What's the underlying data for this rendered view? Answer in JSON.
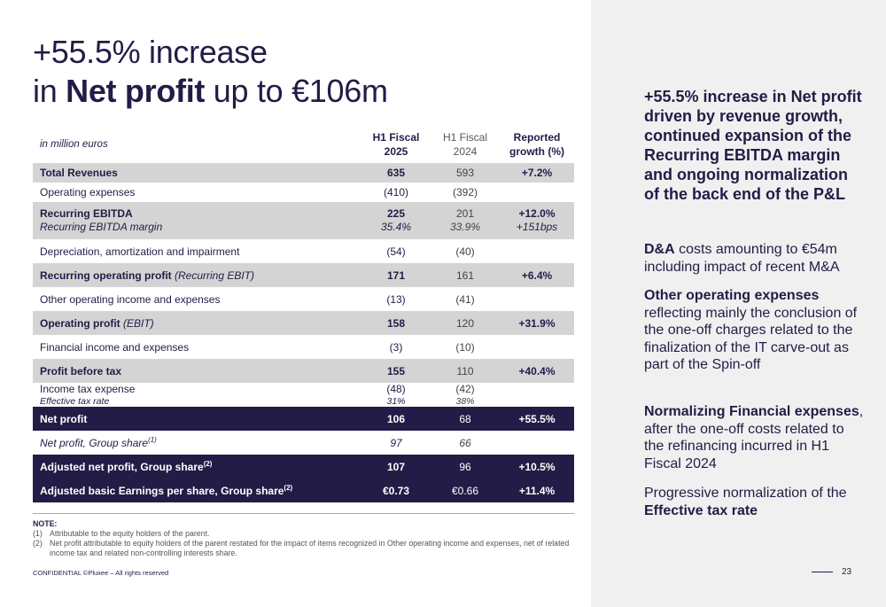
{
  "title": {
    "line1": "+55.5% increase",
    "line2_pre": "in ",
    "line2_bold": "Net profit",
    "line2_post": " up to €106m"
  },
  "table": {
    "unit": "in million euros",
    "headers": {
      "h1_line1": "H1 Fiscal",
      "h1_line2": "2025",
      "h2_line1": "H1 Fiscal",
      "h2_line2": "2024",
      "h3_line1": "Reported",
      "h3_line2": "growth (%)"
    },
    "rows": {
      "total_revenues": {
        "label": "Total Revenues",
        "v2025": "635",
        "v2024": "593",
        "growth": "+7.2%"
      },
      "opex": {
        "label": "Operating expenses",
        "v2025": "(410)",
        "v2024": "(392)",
        "growth": ""
      },
      "ebitda": {
        "label": "Recurring EBITDA",
        "v2025": "225",
        "v2024": "201",
        "growth": "+12.0%",
        "sub_label": "Recurring EBITDA margin",
        "sub_2025": "35.4%",
        "sub_2024": "33.9%",
        "sub_growth": "+151bps"
      },
      "dna": {
        "label": "Depreciation, amortization and impairment",
        "v2025": "(54)",
        "v2024": "(40)",
        "growth": ""
      },
      "rop": {
        "label": "Recurring operating profit",
        "label_it": "(Recurring EBIT)",
        "v2025": "171",
        "v2024": "161",
        "growth": "+6.4%"
      },
      "ooie": {
        "label": "Other operating income and expenses",
        "v2025": "(13)",
        "v2024": "(41)",
        "growth": ""
      },
      "op": {
        "label": "Operating profit",
        "label_it": "(EBIT)",
        "v2025": "158",
        "v2024": "120",
        "growth": "+31.9%"
      },
      "fin": {
        "label": "Financial income and expenses",
        "v2025": "(3)",
        "v2024": "(10)",
        "growth": ""
      },
      "pbt": {
        "label": "Profit before tax",
        "v2025": "155",
        "v2024": "110",
        "growth": "+40.4%"
      },
      "tax": {
        "label": "Income tax expense",
        "v2025": "(48)",
        "v2024": "(42)",
        "growth": "",
        "sub_label": "Effective tax rate",
        "sub_2025": "31%",
        "sub_2024": "38%"
      },
      "np": {
        "label": "Net profit",
        "v2025": "106",
        "v2024": "68",
        "growth": "+55.5%"
      },
      "np_group": {
        "label": "Net profit, Group share",
        "sup": "(1)",
        "v2025": "97",
        "v2024": "66",
        "growth": ""
      },
      "adj_np": {
        "label": "Adjusted net profit, Group share",
        "sup": "(2)",
        "v2025": "107",
        "v2024": "96",
        "growth": "+10.5%"
      },
      "adj_eps": {
        "label": "Adjusted basic Earnings per share, Group share",
        "sup": "(2)",
        "v2025": "€0.73",
        "v2024": "€0.66",
        "growth": "+11.4%"
      }
    }
  },
  "notes": {
    "title": "NOTE:",
    "n1_key": "(1)",
    "n1_text": "Attributable to the equity holders of the parent.",
    "n2_key": "(2)",
    "n2_text": "Net profit attributable to equity holders of the parent restated for the impact of items recognized in Other operating income and expenses, net of related income tax and related non-controlling interests share."
  },
  "footer": {
    "confidential": "CONFIDENTIAL ©Pluxee – All rights reserved",
    "page": "23"
  },
  "side": {
    "headline": "+55.5% increase in Net profit driven by revenue growth, continued expansion of the Recurring EBITDA margin and ongoing normalization of the back end of the P&L",
    "p1_bold": "D&A",
    "p1_rest": " costs amounting to €54m including impact of recent M&A",
    "p2_bold": "Other operating expenses",
    "p2_rest": " reflecting mainly the conclusion of the one-off charges related to the finalization of the IT carve-out as part of the Spin-off",
    "p3_bold": "Normalizing Financial expenses",
    "p3_rest": ", after the one-off costs related to the refinancing incurred in H1 Fiscal 2024",
    "p4_pre": "Progressive normalization of the ",
    "p4_bold": "Effective tax rate"
  }
}
